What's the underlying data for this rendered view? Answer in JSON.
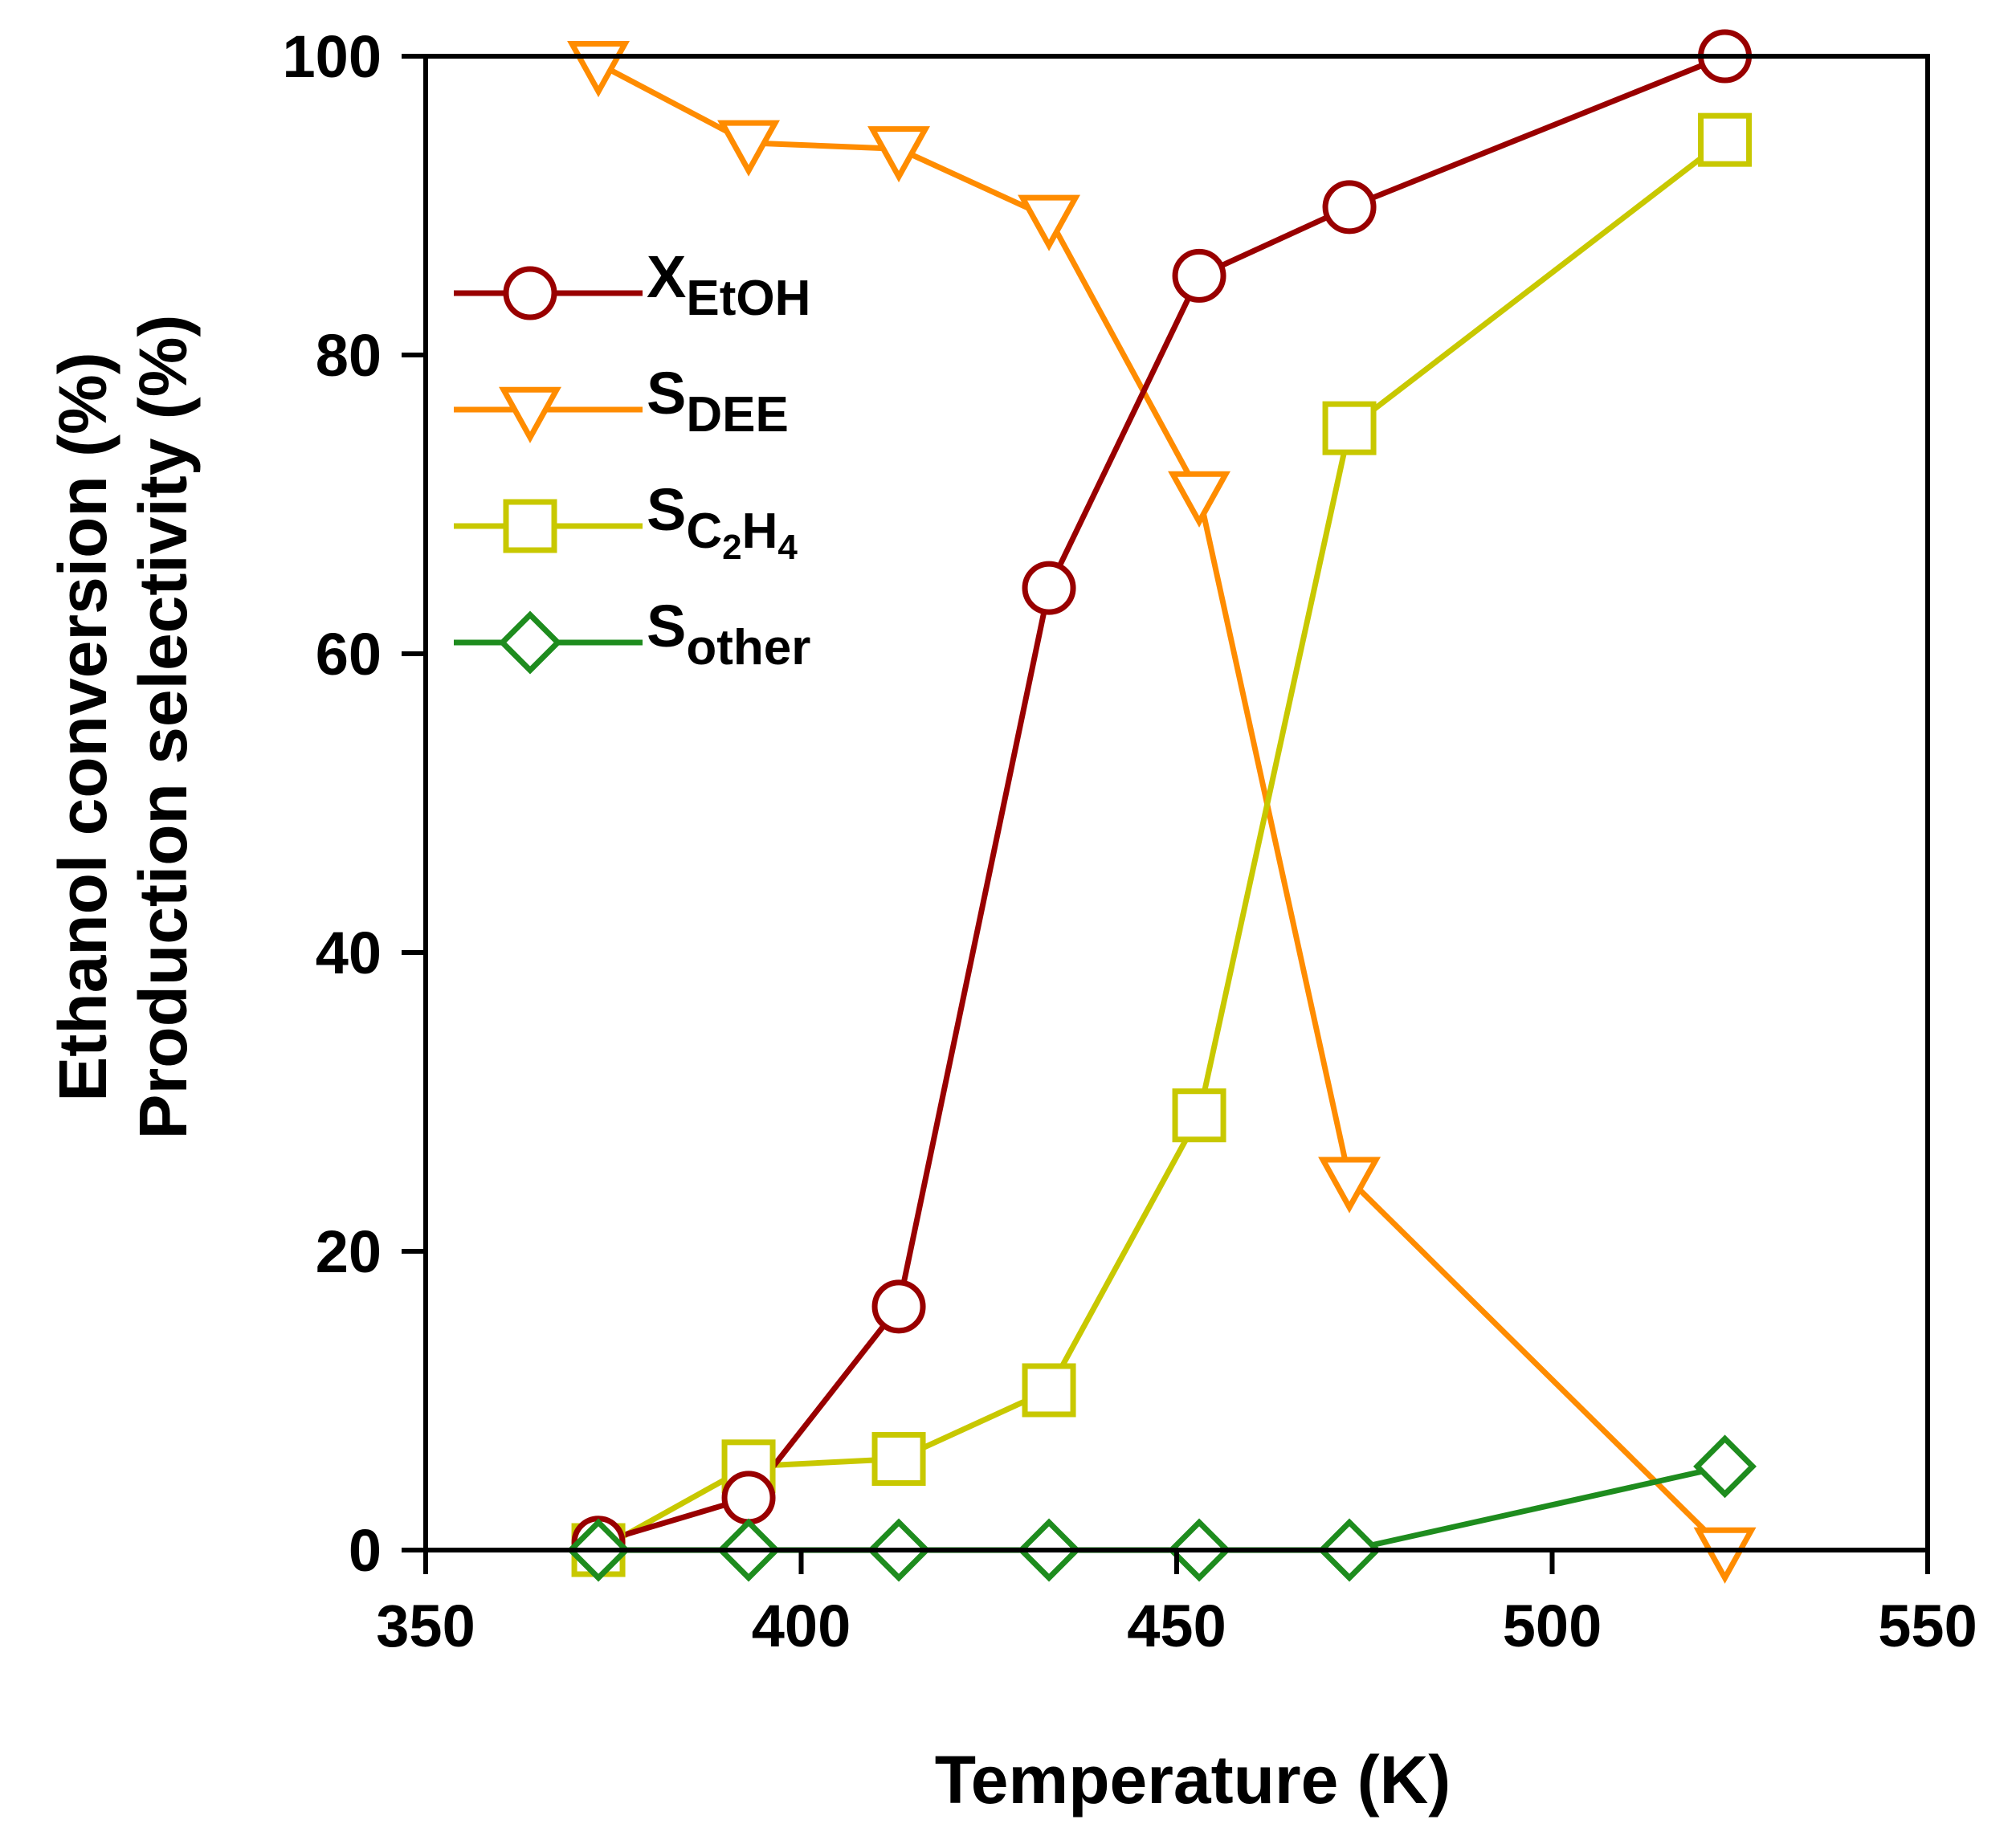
{
  "chart_data": {
    "type": "line",
    "title": "",
    "xlabel": "Temperature (K)",
    "ylabel": [
      "Ethanol conversion (%)",
      "Production selectivity (%)"
    ],
    "xlim": [
      350,
      550
    ],
    "ylim": [
      0,
      100
    ],
    "xticks": [
      "350",
      "400",
      "450",
      "500",
      "550"
    ],
    "yticks": [
      "0",
      "20",
      "40",
      "60",
      "80",
      "100"
    ],
    "x": [
      373,
      393,
      413,
      433,
      453,
      473,
      523
    ],
    "legend_position": "upper-left",
    "series": [
      {
        "name": "XEtOH",
        "label_main": "X",
        "label_sub": "EtOH",
        "marker": "circle",
        "color": "#990000",
        "values": [
          0.5,
          3.5,
          16.3,
          64.4,
          85.3,
          89.9,
          100
        ]
      },
      {
        "name": "SDEE",
        "label_main": "S",
        "label_sub": "DEE",
        "marker": "triangle-down",
        "color": "#FF8C00",
        "values": [
          99.5,
          94.2,
          93.8,
          89.2,
          70.7,
          24.8,
          0
        ]
      },
      {
        "name": "SC2H4",
        "label_main": "S",
        "label_sub": "C",
        "label_sub2": "2",
        "label_sub3": "H",
        "label_sub4": "4",
        "marker": "square",
        "color": "#C8C800",
        "values": [
          0,
          5.6,
          6.1,
          10.7,
          29.1,
          75.1,
          94.4
        ]
      },
      {
        "name": "Sother",
        "label_main": "S",
        "label_sub": "other",
        "marker": "diamond",
        "color": "#1E8C1E",
        "values": [
          0,
          0,
          0,
          0,
          0,
          0,
          5.6
        ]
      }
    ]
  }
}
